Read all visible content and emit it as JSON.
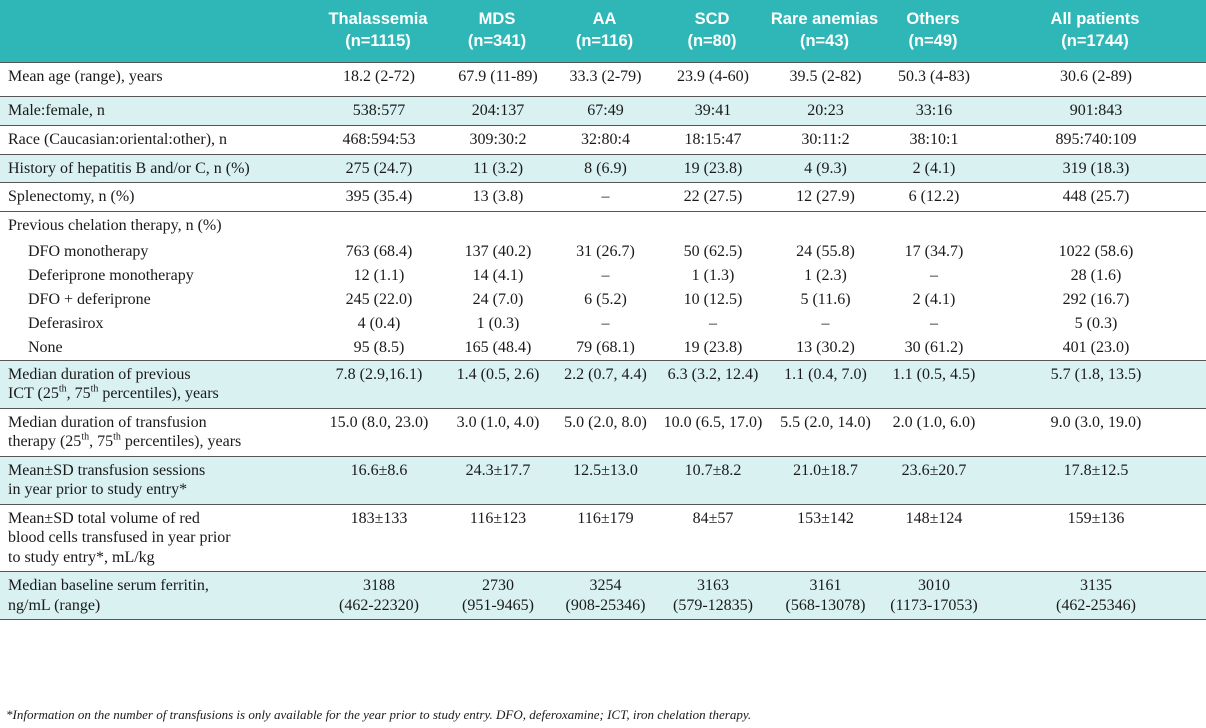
{
  "header": {
    "columns": [
      {
        "name": "",
        "n": ""
      },
      {
        "name": "Thalassemia",
        "n": "(n=1115)"
      },
      {
        "name": "MDS",
        "n": "(n=341)"
      },
      {
        "name": "AA",
        "n": "(n=116)"
      },
      {
        "name": "SCD",
        "n": "(n=80)"
      },
      {
        "name": "Rare anemias",
        "n": "(n=43)"
      },
      {
        "name": "Others",
        "n": "(n=49)"
      },
      {
        "name": "All patients",
        "n": "(n=1744)"
      }
    ]
  },
  "rows": {
    "mean_age": {
      "label": "Mean age (range), years",
      "values": [
        "18.2 (2-72)",
        "67.9 (11-89)",
        "33.3 (2-79)",
        "23.9 (4-60)",
        "39.5 (2-82)",
        "50.3 (4-83)",
        "30.6 (2-89)"
      ]
    },
    "male_female": {
      "label": "Male:female, n",
      "values": [
        "538:577",
        "204:137",
        "67:49",
        "39:41",
        "20:23",
        "33:16",
        "901:843"
      ]
    },
    "race": {
      "label": "Race (Caucasian:oriental:other), n",
      "values": [
        "468:594:53",
        "309:30:2",
        "32:80:4",
        "18:15:47",
        "30:11:2",
        "38:10:1",
        "895:740:109"
      ]
    },
    "hepatitis": {
      "label": "History of hepatitis B and/or C, n (%)",
      "values": [
        "275 (24.7)",
        "11 (3.2)",
        "8 (6.9)",
        "19 (23.8)",
        "4 (9.3)",
        "2 (4.1)",
        "319 (18.3)"
      ]
    },
    "splenectomy": {
      "label": "Splenectomy, n (%)",
      "values": [
        "395 (35.4)",
        "13 (3.8)",
        "–",
        "22 (27.5)",
        "12 (27.9)",
        "6 (12.2)",
        "448 (25.7)"
      ]
    },
    "prev_chelation": {
      "label": "Previous chelation therapy, n (%)"
    },
    "dfo_mono": {
      "label": "DFO monotherapy",
      "values": [
        "763 (68.4)",
        "137 (40.2)",
        "31 (26.7)",
        "50 (62.5)",
        "24 (55.8)",
        "17 (34.7)",
        "1022 (58.6)"
      ]
    },
    "deferiprone_mono": {
      "label": "Deferiprone monotherapy",
      "values": [
        "12 (1.1)",
        "14 (4.1)",
        "–",
        "1 (1.3)",
        "1 (2.3)",
        "–",
        "28 (1.6)"
      ]
    },
    "dfo_deferiprone": {
      "label": "DFO + deferiprone",
      "values": [
        "245 (22.0)",
        "24 (7.0)",
        "6 (5.2)",
        "10 (12.5)",
        "5 (11.6)",
        "2 (4.1)",
        "292 (16.7)"
      ]
    },
    "deferasirox": {
      "label": "Deferasirox",
      "values": [
        "4 (0.4)",
        "1 (0.3)",
        "–",
        "–",
        "–",
        "–",
        "5 (0.3)"
      ]
    },
    "none": {
      "label": "None",
      "values": [
        "95 (8.5)",
        "165 (48.4)",
        "79 (68.1)",
        "19 (23.8)",
        "13 (30.2)",
        "30 (61.2)",
        "401 (23.0)"
      ]
    },
    "median_ict": {
      "label_line1": "Median duration of previous",
      "label_pre": "ICT (25",
      "sup1": "th",
      "label_mid": ", 75",
      "sup2": "th",
      "label_post": " percentiles), years",
      "values": [
        "7.8 (2.9,16.1)",
        "1.4 (0.5, 2.6)",
        "2.2 (0.7, 4.4)",
        "6.3 (3.2, 12.4)",
        "1.1 (0.4, 7.0)",
        "1.1 (0.5, 4.5)",
        "5.7 (1.8, 13.5)"
      ]
    },
    "median_transfusion": {
      "label_line1": "Median duration of transfusion",
      "label_pre": "therapy (25",
      "sup1": "th",
      "label_mid": ", 75",
      "sup2": "th",
      "label_post": " percentiles), years",
      "values": [
        "15.0 (8.0, 23.0)",
        "3.0 (1.0, 4.0)",
        "5.0 (2.0, 8.0)",
        "10.0 (6.5, 17.0)",
        "5.5 (2.0, 14.0)",
        "2.0 (1.0, 6.0)",
        "9.0 (3.0, 19.0)"
      ]
    },
    "transfusion_sessions": {
      "label_line1": "Mean±SD transfusion sessions",
      "label_line2": "in year prior to study entry*",
      "values": [
        "16.6±8.6",
        "24.3±17.7",
        "12.5±13.0",
        "10.7±8.2",
        "21.0±18.7",
        "23.6±20.7",
        "17.8±12.5"
      ]
    },
    "rbc_volume": {
      "label_line1": "Mean±SD total volume of red",
      "label_line2": "blood cells transfused in year prior",
      "label_line3": "to study entry*, mL/kg",
      "values": [
        "183±133",
        "116±123",
        "116±179",
        "84±57",
        "153±142",
        "148±124",
        "159±136"
      ]
    },
    "serum_ferritin": {
      "label_line1": "Median baseline serum ferritin,",
      "label_line2": "ng/mL (range)",
      "values": [
        "3188",
        "2730",
        "3254",
        "3163",
        "3161",
        "3010",
        "3135"
      ],
      "ranges": [
        "(462-22320)",
        "(951-9465)",
        "(908-25346)",
        "(579-12835)",
        "(568-13078)",
        "(1173-17053)",
        "(462-25346)"
      ]
    }
  },
  "footnote": "*Information on the number of transfusions is only available for the year prior to study entry. DFO, deferoxamine; ICT, iron chelation therapy.",
  "colors": {
    "header_bg": "#2fb7b7",
    "shade_bg": "#d9f1f1",
    "header_text": "#ffffff"
  }
}
